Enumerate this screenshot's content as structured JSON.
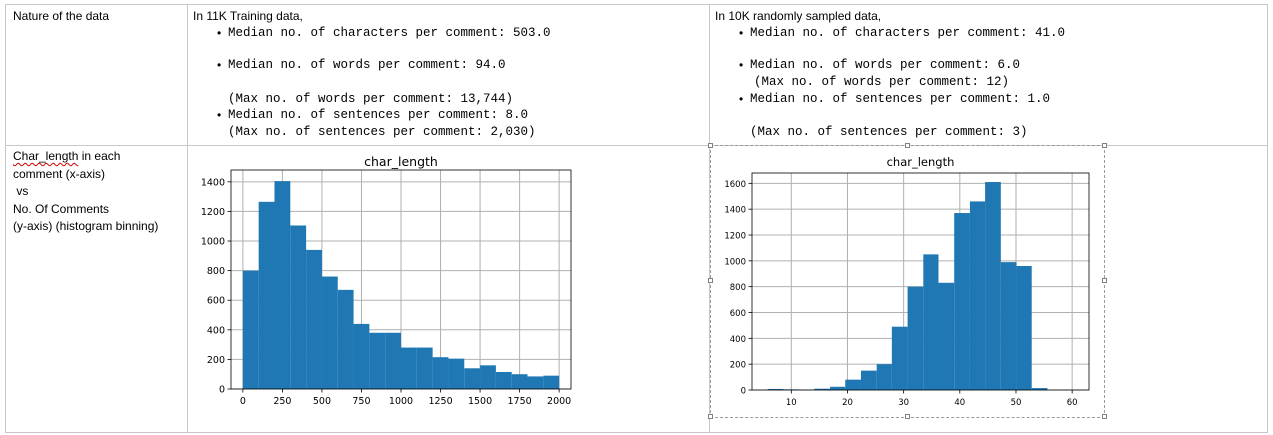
{
  "table": {
    "row1": {
      "label": "Nature of the data",
      "training": {
        "heading": "In 11K Training data,",
        "lines": [
          {
            "bullet": true,
            "text": "Median no. of characters per comment: 503.0"
          },
          {
            "bullet": true,
            "text": "Median no. of words per comment: 94.0"
          },
          {
            "bullet": false,
            "text": "(Max no. of words per comment: 13,744)"
          },
          {
            "bullet": true,
            "text": "Median no. of sentences per comment: 8.0"
          },
          {
            "bullet": false,
            "text": "(Max no. of sentences per comment: 2,030)"
          }
        ]
      },
      "sampled": {
        "heading": "In 10K randomly sampled data,",
        "lines": [
          {
            "bullet": true,
            "text": "Median no. of characters per comment: 41.0"
          },
          {
            "bullet": true,
            "text": "Median no. of words per comment: 6.0"
          },
          {
            "bullet": false,
            "text": "(Max no. of words per comment: 12)"
          },
          {
            "bullet": true,
            "text": "Median no. of sentences per comment: 1.0"
          },
          {
            "bullet": false,
            "text": "(Max no. of sentences per comment: 3)"
          }
        ]
      }
    },
    "row2": {
      "label_word1": "Char_length",
      "label_rest1": " in each",
      "label_lines": [
        "comment (x-axis)",
        " vs",
        "No. Of Comments",
        "(y-axis) (histogram binning)"
      ]
    }
  },
  "chart_data": [
    {
      "type": "bar",
      "title": "char_length",
      "xlim": [
        -75,
        2075
      ],
      "ylim": [
        0,
        1480
      ],
      "xticks": [
        0,
        250,
        500,
        750,
        1000,
        1250,
        1500,
        1750,
        2000
      ],
      "yticks": [
        0,
        200,
        400,
        600,
        800,
        1000,
        1200,
        1400
      ],
      "grid": true,
      "bar_color": "#1f77b4",
      "bins": [
        [
          0,
          100,
          800
        ],
        [
          100,
          200,
          1265
        ],
        [
          200,
          300,
          1405
        ],
        [
          300,
          400,
          1105
        ],
        [
          400,
          500,
          940
        ],
        [
          500,
          600,
          760
        ],
        [
          600,
          700,
          670
        ],
        [
          700,
          800,
          440
        ],
        [
          800,
          900,
          380
        ],
        [
          900,
          1000,
          380
        ],
        [
          1000,
          1100,
          280
        ],
        [
          1100,
          1200,
          280
        ],
        [
          1200,
          1300,
          215
        ],
        [
          1300,
          1400,
          205
        ],
        [
          1400,
          1500,
          140
        ],
        [
          1500,
          1600,
          160
        ],
        [
          1600,
          1700,
          115
        ],
        [
          1700,
          1800,
          100
        ],
        [
          1800,
          1900,
          85
        ],
        [
          1900,
          2000,
          90
        ]
      ]
    },
    {
      "type": "bar",
      "title": "char_length",
      "xlim": [
        3,
        63
      ],
      "ylim": [
        0,
        1680
      ],
      "xticks": [
        10,
        20,
        30,
        40,
        50,
        60
      ],
      "yticks": [
        0,
        200,
        400,
        600,
        800,
        1000,
        1200,
        1400,
        1600
      ],
      "grid": true,
      "bar_color": "#1f77b4",
      "bins": [
        [
          5.8,
          8.6,
          8
        ],
        [
          8.6,
          11.3,
          5
        ],
        [
          11.3,
          14.1,
          3
        ],
        [
          14.1,
          16.9,
          10
        ],
        [
          16.9,
          19.6,
          25
        ],
        [
          19.6,
          22.4,
          80
        ],
        [
          22.4,
          25.2,
          150
        ],
        [
          25.2,
          27.9,
          200
        ],
        [
          27.9,
          30.7,
          490
        ],
        [
          30.7,
          33.5,
          800
        ],
        [
          33.5,
          36.2,
          1050
        ],
        [
          36.2,
          39.0,
          830
        ],
        [
          39.0,
          41.8,
          1370
        ],
        [
          41.8,
          44.5,
          1460
        ],
        [
          44.5,
          47.3,
          1610
        ],
        [
          47.3,
          50.1,
          990
        ],
        [
          50.1,
          52.8,
          960
        ],
        [
          52.8,
          55.6,
          15
        ]
      ]
    }
  ]
}
